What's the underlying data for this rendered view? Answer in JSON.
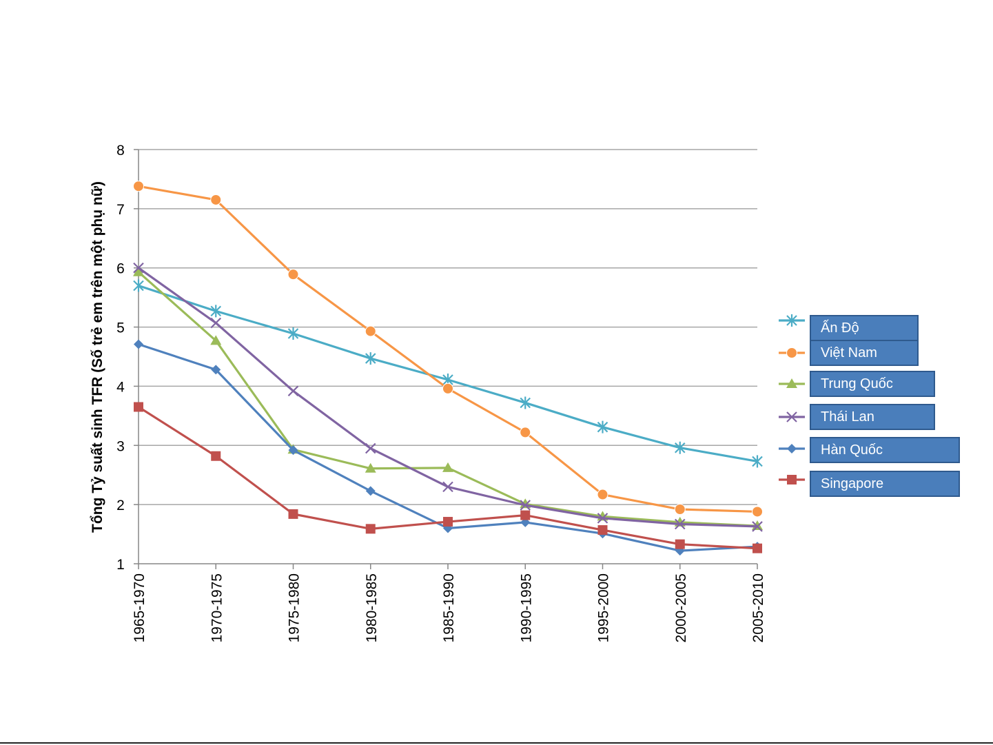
{
  "chart_data": {
    "type": "line",
    "title": "",
    "xlabel": "",
    "ylabel": "Tổng Tỷ suất sinh TFR (Số trẻ em trên một phụ nữ)",
    "ylim": [
      1,
      8
    ],
    "yticks": [
      "1",
      "2",
      "3",
      "4",
      "5",
      "6",
      "7",
      "8"
    ],
    "grid": true,
    "legend_position": "right",
    "categories": [
      "1965-1970",
      "1970-1975",
      "1975-1980",
      "1980-1985",
      "1985-1990",
      "1990-1995",
      "1995-2000",
      "2000-2005",
      "2005-2010"
    ],
    "series": [
      {
        "name": "Ấn Độ",
        "color": "#4bacc6",
        "marker": "star",
        "values": [
          5.7,
          5.27,
          4.89,
          4.47,
          4.11,
          3.72,
          3.31,
          2.96,
          2.73
        ]
      },
      {
        "name": "Việt Nam",
        "color": "#f79646",
        "marker": "circle",
        "values": [
          7.38,
          7.15,
          5.89,
          4.93,
          3.96,
          3.22,
          2.17,
          1.92,
          1.88
        ]
      },
      {
        "name": "Trung Quốc",
        "color": "#9bbb59",
        "marker": "triangle",
        "values": [
          5.93,
          4.77,
          2.93,
          2.61,
          2.62,
          2.01,
          1.8,
          1.7,
          1.64
        ]
      },
      {
        "name": "Thái Lan",
        "color": "#8064a2",
        "marker": "x",
        "values": [
          6.0,
          5.07,
          3.92,
          2.95,
          2.3,
          1.99,
          1.77,
          1.67,
          1.63
        ]
      },
      {
        "name": "Hàn Quốc",
        "color": "#4f81bd",
        "marker": "diamond",
        "values": [
          4.71,
          4.28,
          2.92,
          2.23,
          1.6,
          1.7,
          1.51,
          1.22,
          1.29
        ]
      },
      {
        "name": "Singapore",
        "color": "#c0504d",
        "marker": "square",
        "values": [
          3.65,
          2.82,
          1.84,
          1.59,
          1.71,
          1.82,
          1.57,
          1.33,
          1.26
        ]
      }
    ]
  }
}
